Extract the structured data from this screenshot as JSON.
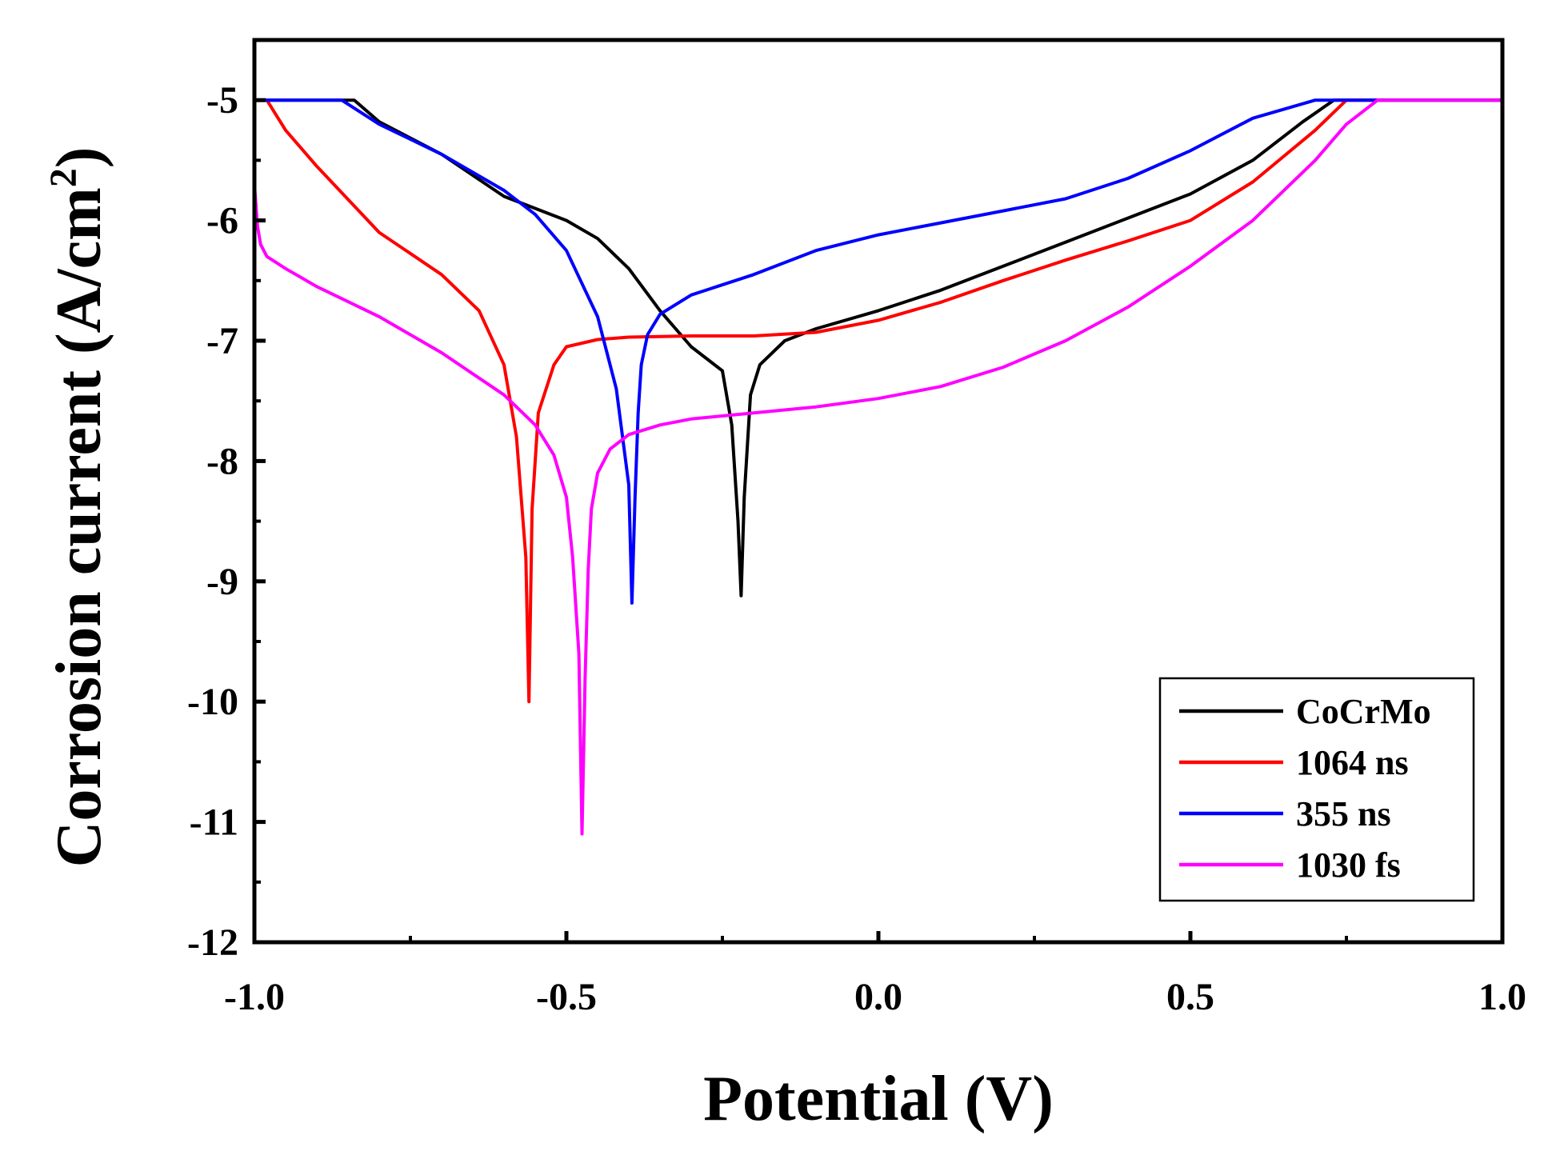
{
  "chart_data": {
    "type": "line",
    "title": "",
    "xlabel": "Potential (V)",
    "ylabel_main": "Corrosion current (A/cm",
    "ylabel_sup": "2",
    "ylabel_close": ")",
    "xlim": [
      -1.0,
      1.0
    ],
    "ylim": [
      -12,
      -4.5
    ],
    "x_ticks": [
      -1.0,
      -0.5,
      0.0,
      0.5,
      1.0
    ],
    "x_tick_labels": [
      "-1.0",
      "-0.5",
      "0.0",
      "0.5",
      "1.0"
    ],
    "y_ticks": [
      -5,
      -6,
      -7,
      -8,
      -9,
      -10,
      -11,
      -12
    ],
    "y_tick_labels": [
      "-5",
      "-6",
      "-7",
      "-8",
      "-9",
      "-10",
      "-11",
      "-12"
    ],
    "grid": false,
    "legend_position": "bottom-right",
    "series": [
      {
        "name": "CoCrMo",
        "color": "#000000",
        "x": [
          -1.0,
          -0.84,
          -0.8,
          -0.7,
          -0.6,
          -0.5,
          -0.45,
          -0.4,
          -0.35,
          -0.3,
          -0.25,
          -0.235,
          -0.225,
          -0.22,
          -0.215,
          -0.205,
          -0.19,
          -0.15,
          -0.1,
          0.0,
          0.1,
          0.2,
          0.3,
          0.4,
          0.5,
          0.6,
          0.68,
          0.73,
          1.0
        ],
        "y": [
          -5.0,
          -5.0,
          -5.18,
          -5.45,
          -5.8,
          -6.0,
          -6.15,
          -6.4,
          -6.75,
          -7.05,
          -7.25,
          -7.7,
          -8.5,
          -9.12,
          -8.3,
          -7.45,
          -7.2,
          -7.0,
          -6.9,
          -6.75,
          -6.58,
          -6.38,
          -6.18,
          -5.98,
          -5.78,
          -5.5,
          -5.18,
          -5.0,
          -5.0
        ]
      },
      {
        "name": "1064 ns",
        "color": "#ff0000",
        "x": [
          -1.0,
          -0.98,
          -0.95,
          -0.9,
          -0.8,
          -0.7,
          -0.64,
          -0.6,
          -0.58,
          -0.565,
          -0.56,
          -0.555,
          -0.545,
          -0.52,
          -0.5,
          -0.45,
          -0.4,
          -0.3,
          -0.2,
          -0.1,
          0.0,
          0.1,
          0.2,
          0.3,
          0.4,
          0.5,
          0.6,
          0.7,
          0.75,
          1.0
        ],
        "y": [
          -5.0,
          -5.0,
          -5.25,
          -5.55,
          -6.1,
          -6.45,
          -6.75,
          -7.2,
          -7.8,
          -8.8,
          -10.0,
          -8.4,
          -7.6,
          -7.2,
          -7.05,
          -6.99,
          -6.97,
          -6.96,
          -6.96,
          -6.93,
          -6.83,
          -6.68,
          -6.5,
          -6.33,
          -6.17,
          -6.0,
          -5.68,
          -5.25,
          -5.0,
          -5.0
        ]
      },
      {
        "name": "355 ns",
        "color": "#0000ff",
        "x": [
          -1.0,
          -0.86,
          -0.8,
          -0.7,
          -0.6,
          -0.55,
          -0.5,
          -0.45,
          -0.42,
          -0.4,
          -0.395,
          -0.39,
          -0.385,
          -0.38,
          -0.37,
          -0.35,
          -0.3,
          -0.2,
          -0.1,
          0.0,
          0.1,
          0.2,
          0.3,
          0.4,
          0.5,
          0.6,
          0.7,
          1.0
        ],
        "y": [
          -5.0,
          -5.0,
          -5.2,
          -5.45,
          -5.75,
          -5.95,
          -6.25,
          -6.8,
          -7.4,
          -8.2,
          -9.18,
          -8.3,
          -7.6,
          -7.2,
          -6.95,
          -6.78,
          -6.62,
          -6.45,
          -6.25,
          -6.12,
          -6.02,
          -5.92,
          -5.82,
          -5.65,
          -5.42,
          -5.15,
          -5.0,
          -5.0
        ]
      },
      {
        "name": "1030 fs",
        "color": "#ff00ff",
        "x": [
          -1.0,
          -0.995,
          -0.99,
          -0.98,
          -0.95,
          -0.9,
          -0.8,
          -0.7,
          -0.6,
          -0.55,
          -0.52,
          -0.5,
          -0.49,
          -0.48,
          -0.475,
          -0.47,
          -0.465,
          -0.46,
          -0.45,
          -0.43,
          -0.4,
          -0.35,
          -0.3,
          -0.2,
          -0.1,
          0.0,
          0.1,
          0.2,
          0.3,
          0.4,
          0.5,
          0.6,
          0.7,
          0.75,
          0.8,
          1.0
        ],
        "y": [
          -5.7,
          -6.05,
          -6.2,
          -6.3,
          -6.4,
          -6.55,
          -6.8,
          -7.1,
          -7.45,
          -7.7,
          -7.95,
          -8.3,
          -8.8,
          -9.6,
          -11.1,
          -9.8,
          -8.9,
          -8.4,
          -8.1,
          -7.9,
          -7.78,
          -7.7,
          -7.65,
          -7.6,
          -7.55,
          -7.48,
          -7.38,
          -7.22,
          -7.0,
          -6.72,
          -6.38,
          -6.0,
          -5.5,
          -5.2,
          -5.0,
          -5.0
        ]
      }
    ]
  }
}
